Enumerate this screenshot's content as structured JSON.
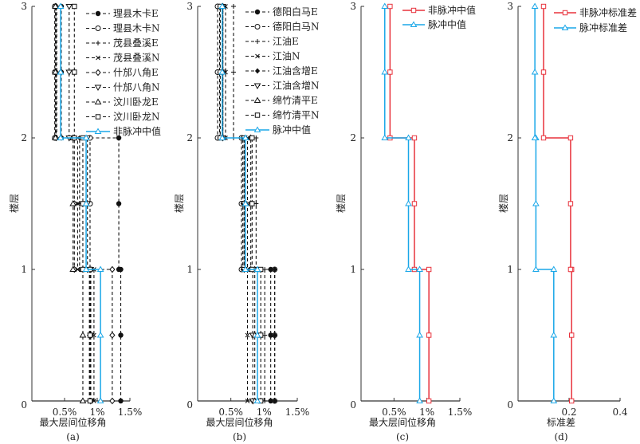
{
  "chart_data": [
    {
      "type": "line",
      "panel_label": "(a)",
      "xlabel": "最大层间位移角",
      "ylabel": "楼层",
      "xlim": [
        0,
        1.5
      ],
      "ylim": [
        0,
        3
      ],
      "xticks": [
        {
          "v": 0.5,
          "t": "0.5%"
        },
        {
          "v": 1,
          "t": "1%"
        },
        {
          "v": 1.5,
          "t": "1.5%"
        }
      ],
      "yticks": [
        0,
        1,
        2,
        3
      ],
      "origin_label": "0",
      "floors": [
        1,
        2,
        3
      ],
      "series": [
        {
          "name": "理县木卡E",
          "marker": "dot",
          "color": "#111111",
          "values": [
            1.36,
            1.33,
            0.45
          ]
        },
        {
          "name": "理县木卡N",
          "marker": "circle",
          "color": "#111111",
          "values": [
            0.9,
            0.89,
            0.35
          ]
        },
        {
          "name": "茂县叠溪E",
          "marker": "plus",
          "color": "#111111",
          "values": [
            0.88,
            0.73,
            0.38
          ]
        },
        {
          "name": "茂县叠溪N",
          "marker": "cross",
          "color": "#111111",
          "values": [
            0.95,
            0.7,
            0.36
          ]
        },
        {
          "name": "什邡八角E",
          "marker": "diamond",
          "color": "#111111",
          "values": [
            1.23,
            0.65,
            0.37
          ]
        },
        {
          "name": "什邡八角N",
          "marker": "tridown",
          "color": "#111111",
          "values": [
            0.9,
            0.85,
            0.57
          ]
        },
        {
          "name": "汶川卧龙E",
          "marker": "triup",
          "color": "#111111",
          "values": [
            0.78,
            0.63,
            0.36
          ]
        },
        {
          "name": "汶川卧龙N",
          "marker": "square",
          "color": "#111111",
          "values": [
            0.89,
            0.78,
            0.65
          ]
        },
        {
          "name": "非脉冲中值",
          "marker": "triup",
          "color": "#1aa7e8",
          "solid": true,
          "values": [
            1.05,
            0.83,
            0.44
          ]
        }
      ]
    },
    {
      "type": "line",
      "panel_label": "(b)",
      "xlabel": "最大层间位移角",
      "ylabel": "楼层",
      "xlim": [
        0,
        1.5
      ],
      "ylim": [
        0,
        3
      ],
      "xticks": [
        {
          "v": 0.5,
          "t": "0.5%"
        },
        {
          "v": 1,
          "t": "1%"
        },
        {
          "v": 1.5,
          "t": "1.5%"
        }
      ],
      "yticks": [
        0,
        1,
        2,
        3
      ],
      "origin_label": "0",
      "floors": [
        1,
        2,
        3
      ],
      "series": [
        {
          "name": "德阳白马E",
          "marker": "dot",
          "color": "#111111",
          "values": [
            1.1,
            0.7,
            0.37
          ]
        },
        {
          "name": "德阳白马N",
          "marker": "circle",
          "color": "#111111",
          "values": [
            1.16,
            0.66,
            0.3
          ]
        },
        {
          "name": "江油E",
          "marker": "plus",
          "color": "#111111",
          "values": [
            1.01,
            0.88,
            0.54
          ]
        },
        {
          "name": "江油N",
          "marker": "cross",
          "color": "#111111",
          "values": [
            0.75,
            0.75,
            0.42
          ]
        },
        {
          "name": "江油含增E",
          "marker": "fdiamond",
          "color": "#111111",
          "values": [
            1.16,
            0.68,
            0.33
          ]
        },
        {
          "name": "江油含增N",
          "marker": "tridown",
          "color": "#111111",
          "values": [
            0.83,
            0.7,
            0.38
          ]
        },
        {
          "name": "绵竹清平E",
          "marker": "triup",
          "color": "#111111",
          "values": [
            0.86,
            0.8,
            0.38
          ]
        },
        {
          "name": "绵竹清平N",
          "marker": "square",
          "color": "#111111",
          "values": [
            0.95,
            0.82,
            0.34
          ]
        },
        {
          "name": "脉冲中值",
          "marker": "triup",
          "color": "#1aa7e8",
          "solid": true,
          "values": [
            0.9,
            0.72,
            0.37
          ]
        }
      ]
    },
    {
      "type": "line",
      "panel_label": "(c)",
      "xlabel": "最大层间位移角",
      "ylabel": "楼层",
      "xlim": [
        0,
        1.5
      ],
      "ylim": [
        0,
        3
      ],
      "xticks": [
        {
          "v": 0.5,
          "t": "0.5%"
        },
        {
          "v": 1,
          "t": "1%"
        },
        {
          "v": 1.5,
          "t": "1.5%"
        }
      ],
      "yticks": [
        0,
        1,
        2,
        3
      ],
      "origin_label": "0",
      "floors": [
        1,
        2,
        3
      ],
      "series": [
        {
          "name": "非脉冲中值",
          "marker": "square",
          "color": "#e8323c",
          "solid": true,
          "values": [
            1.03,
            0.81,
            0.44
          ]
        },
        {
          "name": "脉冲中值",
          "marker": "triup",
          "color": "#1aa7e8",
          "solid": true,
          "values": [
            0.89,
            0.72,
            0.36
          ]
        }
      ]
    },
    {
      "type": "line",
      "panel_label": "(d)",
      "xlabel": "标准差",
      "ylabel": "楼层",
      "xlim": [
        0,
        0.4
      ],
      "ylim": [
        0,
        3
      ],
      "xticks": [
        {
          "v": 0.2,
          "t": "0.2"
        },
        {
          "v": 0.4,
          "t": "0.4"
        }
      ],
      "yticks": [
        0,
        1,
        2,
        3
      ],
      "origin_label": "0",
      "floors": [
        1,
        2,
        3
      ],
      "series": [
        {
          "name": "非脉冲标准差",
          "marker": "square",
          "color": "#e8323c",
          "solid": true,
          "values": [
            0.21,
            0.206,
            0.1
          ]
        },
        {
          "name": "脉冲标准差",
          "marker": "triup",
          "color": "#1aa7e8",
          "solid": true,
          "values": [
            0.14,
            0.07,
            0.066
          ]
        }
      ]
    }
  ]
}
